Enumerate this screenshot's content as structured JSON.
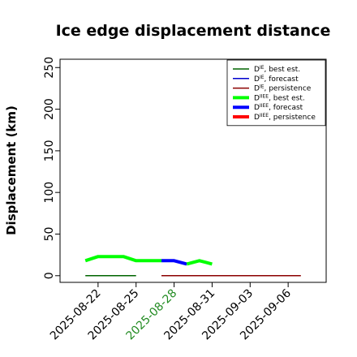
{
  "chart_data": {
    "type": "line",
    "title": "Ice edge displacement distance",
    "ylabel": "Displacement (km)",
    "xlabel": "",
    "ylim": [
      -8,
      260
    ],
    "xlim": [
      "2025-08-19",
      "2025-09-09"
    ],
    "grid": false,
    "legend_placement": "top-right",
    "yticks": [
      "0",
      "50",
      "100",
      "150",
      "200",
      "250"
    ],
    "xticks": [
      {
        "label": "2025-08-22",
        "color": "#000000"
      },
      {
        "label": "2025-08-25",
        "color": "#000000"
      },
      {
        "label": "2025-08-28",
        "color": "#228B22"
      },
      {
        "label": "2025-08-31",
        "color": "#000000"
      },
      {
        "label": "2025-09-03",
        "color": "#000000"
      },
      {
        "label": "2025-09-06",
        "color": "#000000"
      }
    ],
    "series": [
      {
        "main": "D",
        "sup": "IE",
        "suffix": ", best est.",
        "color": "#006400",
        "width": 1.5,
        "points": [
          [
            "2025-08-21",
            0
          ],
          [
            "2025-08-22",
            0
          ],
          [
            "2025-08-23",
            0
          ],
          [
            "2025-08-24",
            0
          ],
          [
            "2025-08-25",
            0
          ]
        ]
      },
      {
        "main": "D",
        "sup": "IE",
        "suffix": ", forecast",
        "color": "#0000CD",
        "width": 1.5,
        "points": []
      },
      {
        "main": "D",
        "sup": "IE",
        "suffix": ", persistence",
        "color": "#8B0000",
        "width": 1.5,
        "points": [
          [
            "2025-08-27",
            0
          ],
          [
            "2025-09-01",
            0
          ],
          [
            "2025-09-05",
            0
          ],
          [
            "2025-09-07",
            0
          ]
        ]
      },
      {
        "main": "D",
        "sup": "IIEE",
        "suffix": ", best est.",
        "color": "#00FF00",
        "width": 4,
        "points": [
          [
            "2025-08-21",
            18
          ],
          [
            "2025-08-22",
            23
          ],
          [
            "2025-08-23",
            23
          ],
          [
            "2025-08-24",
            23
          ],
          [
            "2025-08-25",
            18
          ],
          [
            "2025-08-26",
            18
          ],
          [
            "2025-08-27",
            18
          ]
        ]
      },
      {
        "main": "D",
        "sup": "IIEE",
        "suffix": ", forecast",
        "color": "#0000FF",
        "width": 4,
        "points": [
          [
            "2025-08-27",
            18
          ],
          [
            "2025-08-28",
            18
          ],
          [
            "2025-08-29",
            14
          ]
        ]
      },
      {
        "main": "D",
        "sup": "IIEE",
        "suffix": ", persistence",
        "color": "#FF0000",
        "width": 4,
        "points": []
      },
      {
        "main": "",
        "sup": "",
        "suffix": "",
        "color": "#00FF00",
        "width": 4,
        "in_legend": false,
        "points": [
          [
            "2025-08-29",
            14
          ],
          [
            "2025-08-30",
            18
          ],
          [
            "2025-08-31",
            14
          ]
        ]
      }
    ]
  }
}
